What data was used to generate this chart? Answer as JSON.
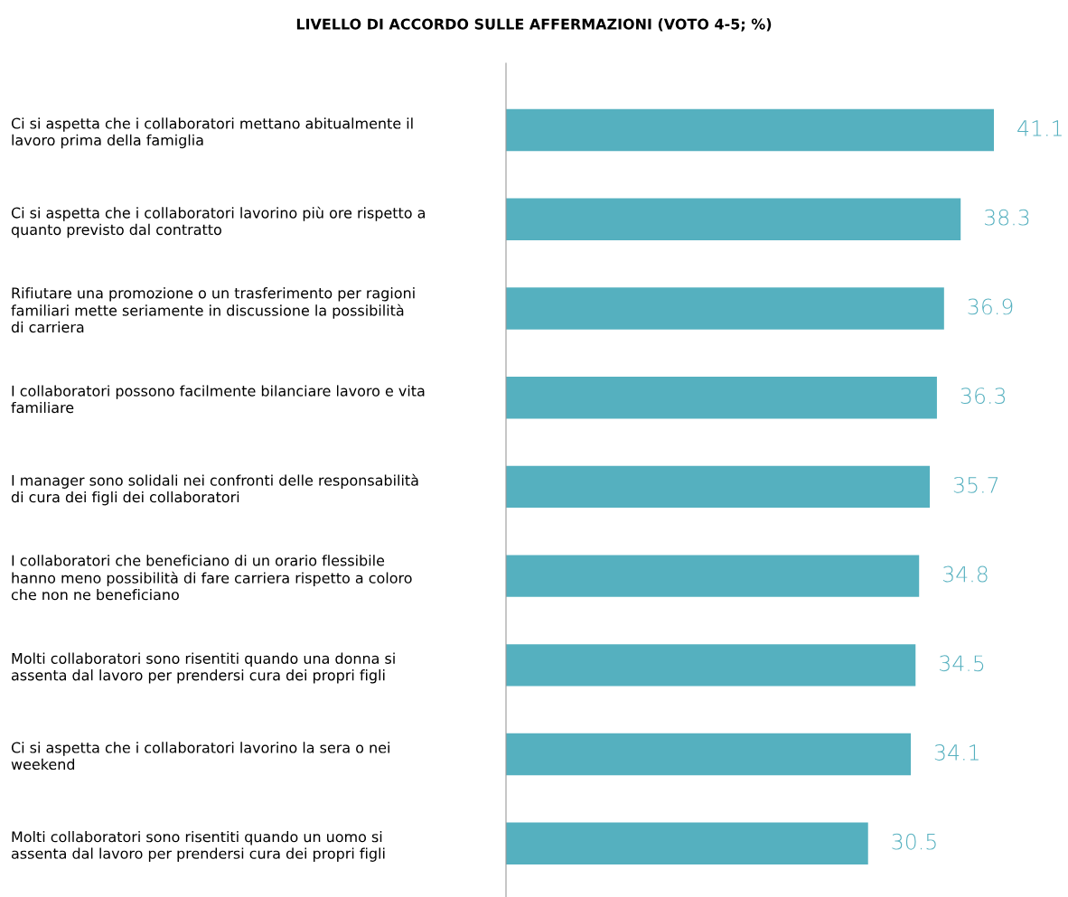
{
  "chart_data": {
    "type": "bar",
    "orientation": "horizontal",
    "title": "LIVELLO DI ACCORDO SULLE AFFERMAZIONI (VOTO 4-5; %)",
    "categories": [
      "Ci si aspetta che i collaboratori mettano abitualmente il\nlavoro prima della famiglia",
      "Ci si aspetta che i collaboratori lavorino più ore rispetto a\nquanto previsto dal contratto",
      "Rifiutare una promozione o un trasferimento per ragioni\nfamiliari mette seriamente in discussione la possibilità\ndi carriera",
      "I collaboratori possono facilmente bilanciare lavoro e vita\nfamiliare",
      "I manager sono solidali nei confronti delle responsabilità\ndi cura dei figli dei collaboratori",
      "I collaboratori che beneficiano di un orario flessibile\nhanno meno possibilità di fare carriera rispetto a coloro\nche non ne beneficiano",
      "Molti collaboratori sono risentiti quando una donna si\nassenta dal lavoro per prendersi cura dei propri figli",
      "Ci si aspetta che i collaboratori lavorino la sera o nei\nweekend",
      "Molti collaboratori sono risentiti quando un uomo si\nassenta dal lavoro per prendersi cura dei propri figli"
    ],
    "values": [
      41.1,
      38.3,
      36.9,
      36.3,
      35.7,
      34.8,
      34.5,
      34.1,
      30.5
    ],
    "value_labels": [
      "41.1",
      "38.3",
      "36.9",
      "36.3",
      "35.7",
      "34.8",
      "34.5",
      "34.1",
      "30.5"
    ],
    "color": "#55b0bf",
    "grid": false,
    "legend": false
  }
}
